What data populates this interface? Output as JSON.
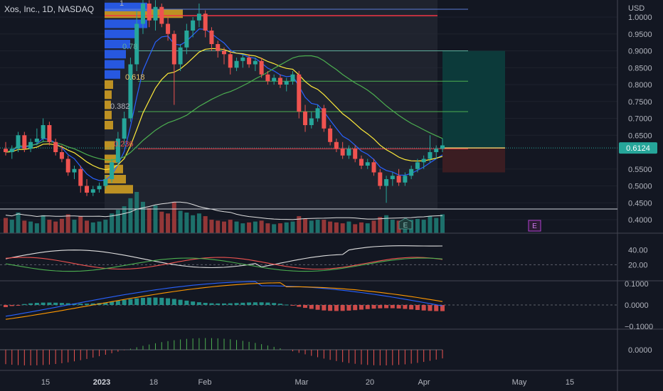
{
  "header": {
    "symbol_title": "Xos, Inc., 1D, NASDAQ"
  },
  "price_axis": {
    "currency": "USD",
    "ticks": [
      "1.0000",
      "0.9500",
      "0.9000",
      "0.8500",
      "0.8000",
      "0.7500",
      "0.7000",
      "0.6500",
      "0.5500",
      "0.5000",
      "0.4500",
      "0.4000"
    ],
    "tick_values": [
      1.0,
      0.95,
      0.9,
      0.85,
      0.8,
      0.75,
      0.7,
      0.65,
      0.55,
      0.5,
      0.45,
      0.4
    ],
    "last_price_label": "0.6124",
    "last_price": 0.6124
  },
  "osc1_axis": {
    "ticks": [
      "40.00",
      "20.00"
    ],
    "tick_values": [
      40,
      20
    ]
  },
  "osc2_axis": {
    "ticks": [
      "0.1000",
      "0.0000",
      "−0.1000"
    ],
    "tick_values": [
      0.1,
      0,
      -0.1
    ]
  },
  "osc3_axis": {
    "ticks": [
      "0.0000"
    ],
    "tick_values": [
      0
    ]
  },
  "time_axis": {
    "labels": [
      "15",
      "2023",
      "18",
      "Feb",
      "Mar",
      "20",
      "Apr",
      "May",
      "15"
    ],
    "bold_label": "2023"
  },
  "fib_labels": {
    "f618": "0.618",
    "f382": "0.382",
    "f236": "0.236",
    "f_top": "1",
    "f_78": "0.78"
  },
  "earnings_markers": [
    "E",
    "E"
  ],
  "colors": {
    "up": "#26a69a",
    "down": "#ef5350",
    "bg": "#131722",
    "grid": "#2a2e39",
    "ema_fast": "#2962ff",
    "ema_mid": "#ffeb3b",
    "sma_slow": "#4caf50",
    "red_line": "#f23645",
    "target_zone": "#0c3a3a",
    "stop_zone": "#3b1d22",
    "vp_blue": "#2962ff",
    "vp_orange": "#d9a421"
  },
  "chart_data": {
    "type": "candlestick",
    "title": "Xos, Inc., 1D, NASDAQ",
    "ylabel": "USD",
    "ylim": [
      0.38,
      1.05
    ],
    "note_dates": "approx. daily candles from mid Dec 2022 to early Apr 2023",
    "ohlc": [
      [
        0.61,
        0.63,
        0.59,
        0.6
      ],
      [
        0.6,
        0.62,
        0.58,
        0.61
      ],
      [
        0.61,
        0.66,
        0.6,
        0.65
      ],
      [
        0.65,
        0.66,
        0.6,
        0.61
      ],
      [
        0.61,
        0.64,
        0.6,
        0.63
      ],
      [
        0.63,
        0.67,
        0.62,
        0.64
      ],
      [
        0.64,
        0.7,
        0.63,
        0.68
      ],
      [
        0.68,
        0.69,
        0.62,
        0.63
      ],
      [
        0.63,
        0.64,
        0.59,
        0.6
      ],
      [
        0.6,
        0.62,
        0.57,
        0.58
      ],
      [
        0.58,
        0.59,
        0.53,
        0.54
      ],
      [
        0.54,
        0.56,
        0.52,
        0.55
      ],
      [
        0.55,
        0.56,
        0.48,
        0.5
      ],
      [
        0.5,
        0.52,
        0.47,
        0.48
      ],
      [
        0.48,
        0.5,
        0.47,
        0.49
      ],
      [
        0.49,
        0.51,
        0.48,
        0.5
      ],
      [
        0.5,
        0.53,
        0.49,
        0.52
      ],
      [
        0.52,
        0.58,
        0.51,
        0.57
      ],
      [
        0.57,
        0.66,
        0.56,
        0.64
      ],
      [
        0.64,
        0.72,
        0.62,
        0.7
      ],
      [
        0.7,
        0.88,
        0.69,
        0.86
      ],
      [
        0.86,
        1.02,
        0.84,
        0.98
      ],
      [
        0.98,
        1.06,
        0.95,
        1.04
      ],
      [
        1.04,
        1.05,
        0.97,
        0.99
      ],
      [
        0.99,
        1.05,
        0.96,
        1.03
      ],
      [
        1.03,
        1.04,
        0.97,
        0.98
      ],
      [
        0.98,
        1.0,
        0.93,
        0.95
      ],
      [
        0.95,
        0.96,
        0.74,
        0.86
      ],
      [
        0.86,
        0.92,
        0.84,
        0.91
      ],
      [
        0.91,
        0.98,
        0.89,
        0.96
      ],
      [
        0.96,
        1.0,
        0.94,
        0.99
      ],
      [
        0.99,
        1.04,
        0.97,
        1.01
      ],
      [
        1.01,
        1.02,
        0.94,
        0.96
      ],
      [
        0.96,
        0.97,
        0.9,
        0.92
      ],
      [
        0.92,
        0.93,
        0.88,
        0.9
      ],
      [
        0.9,
        0.91,
        0.86,
        0.89
      ],
      [
        0.89,
        0.9,
        0.83,
        0.85
      ],
      [
        0.85,
        0.88,
        0.84,
        0.87
      ],
      [
        0.87,
        0.89,
        0.85,
        0.88
      ],
      [
        0.88,
        0.89,
        0.85,
        0.86
      ],
      [
        0.86,
        0.88,
        0.84,
        0.87
      ],
      [
        0.87,
        0.88,
        0.82,
        0.83
      ],
      [
        0.83,
        0.84,
        0.8,
        0.81
      ],
      [
        0.81,
        0.83,
        0.8,
        0.82
      ],
      [
        0.82,
        0.83,
        0.79,
        0.8
      ],
      [
        0.8,
        0.82,
        0.78,
        0.81
      ],
      [
        0.81,
        0.84,
        0.8,
        0.83
      ],
      [
        0.83,
        0.84,
        0.7,
        0.72
      ],
      [
        0.72,
        0.74,
        0.66,
        0.68
      ],
      [
        0.68,
        0.72,
        0.67,
        0.7
      ],
      [
        0.7,
        0.74,
        0.69,
        0.73
      ],
      [
        0.73,
        0.74,
        0.66,
        0.67
      ],
      [
        0.67,
        0.68,
        0.62,
        0.63
      ],
      [
        0.63,
        0.64,
        0.6,
        0.61
      ],
      [
        0.61,
        0.63,
        0.58,
        0.59
      ],
      [
        0.59,
        0.62,
        0.58,
        0.61
      ],
      [
        0.61,
        0.62,
        0.57,
        0.58
      ],
      [
        0.58,
        0.59,
        0.55,
        0.56
      ],
      [
        0.56,
        0.58,
        0.55,
        0.57
      ],
      [
        0.57,
        0.58,
        0.53,
        0.54
      ],
      [
        0.54,
        0.55,
        0.49,
        0.5
      ],
      [
        0.5,
        0.53,
        0.45,
        0.52
      ],
      [
        0.52,
        0.54,
        0.5,
        0.53
      ],
      [
        0.53,
        0.55,
        0.5,
        0.51
      ],
      [
        0.51,
        0.54,
        0.5,
        0.53
      ],
      [
        0.53,
        0.56,
        0.52,
        0.55
      ],
      [
        0.55,
        0.58,
        0.54,
        0.57
      ],
      [
        0.57,
        0.59,
        0.55,
        0.58
      ],
      [
        0.58,
        0.65,
        0.57,
        0.6
      ],
      [
        0.6,
        0.62,
        0.58,
        0.61
      ],
      [
        0.61,
        0.64,
        0.6,
        0.62
      ]
    ],
    "volume": [
      34,
      30,
      46,
      28,
      26,
      22,
      40,
      30,
      26,
      32,
      42,
      30,
      38,
      28,
      24,
      26,
      30,
      44,
      52,
      60,
      78,
      92,
      70,
      56,
      62,
      48,
      44,
      70,
      50,
      46,
      40,
      44,
      38,
      30,
      28,
      26,
      30,
      26,
      22,
      24,
      26,
      28,
      22,
      20,
      22,
      24,
      26,
      38,
      32,
      28,
      30,
      30,
      26,
      24,
      22,
      26,
      20,
      24,
      22,
      28,
      36,
      40,
      30,
      28,
      26,
      30,
      32,
      30,
      38,
      34,
      42
    ],
    "levels": [
      {
        "label": "1",
        "value": 1.0
      },
      {
        "label": "0.78",
        "value": 0.9
      },
      {
        "label": "0.618",
        "value": 0.81
      },
      {
        "label": "0.382",
        "value": 0.72
      },
      {
        "label": "0.236",
        "value": 0.61
      }
    ],
    "position": {
      "entry": 0.6124,
      "target": 0.9,
      "stop": 0.54
    },
    "osc1_ylim": [
      0,
      60
    ],
    "osc2_ylim": [
      -0.15,
      0.15
    ],
    "osc3_ylim": [
      -0.06,
      0.06
    ]
  }
}
